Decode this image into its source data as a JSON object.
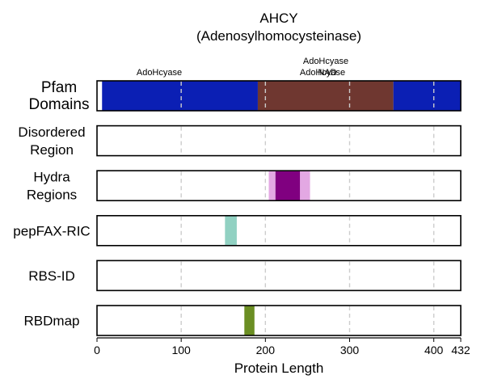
{
  "chart_data": {
    "type": "bar",
    "title": "AHCY",
    "subtitle": "(Adenosylhomocysteinase)",
    "xlabel": "Protein Length",
    "xlim": [
      0,
      432
    ],
    "xticks": [
      0,
      100,
      200,
      300,
      400,
      432
    ],
    "grid": "vertical dashed",
    "colors": {
      "pfam_dark_blue": "#0b1fb4",
      "pfam_brown": "#6f3730",
      "hydra_light": "#e3a8e3",
      "hydra_dark": "#800080",
      "pepfax": "#91d1c2",
      "rbdmap": "#6b8e23",
      "grid": "#cccccc"
    },
    "tracks": [
      {
        "label": "Pfam\nDomains",
        "segments": [
          {
            "start": 6,
            "end": 191,
            "color": "#0b1fb4",
            "label": "AdoHcyase"
          },
          {
            "start": 191,
            "end": 352,
            "color": "#6f3730",
            "label": "AdoHcyase_NAD"
          },
          {
            "start": 352,
            "end": 432,
            "color": "#0b1fb4",
            "label": "AdoHcyase"
          }
        ]
      },
      {
        "label": "Disordered\nRegion",
        "segments": []
      },
      {
        "label": "Hydra\nRegions",
        "segments": [
          {
            "start": 204,
            "end": 253,
            "color": "#e3a8e3"
          },
          {
            "start": 212,
            "end": 241,
            "color": "#800080"
          }
        ]
      },
      {
        "label": "pepFAX-RIC",
        "segments": [
          {
            "start": 152,
            "end": 166,
            "color": "#91d1c2"
          }
        ]
      },
      {
        "label": "RBS-ID",
        "segments": []
      },
      {
        "label": "RBDmap",
        "segments": [
          {
            "start": 175,
            "end": 187,
            "color": "#6b8e23"
          }
        ]
      }
    ],
    "domain_labels": [
      {
        "text": "AdoHcyase",
        "lines": [
          "AdoHcyase"
        ]
      },
      {
        "text": "AdoHcyase AdoHcyase_NAD",
        "lines": [
          "AdoHcyase",
          "AdoHcyase",
          "NAD"
        ]
      }
    ]
  }
}
